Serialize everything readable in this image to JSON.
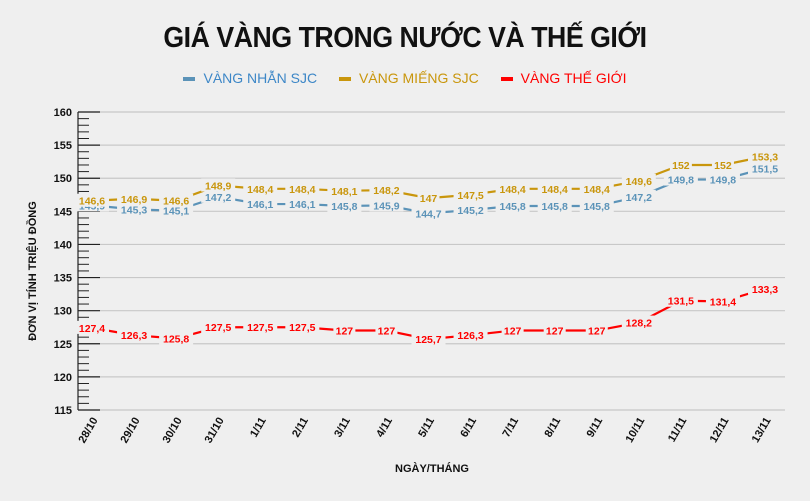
{
  "title": "GIÁ VÀNG TRONG NƯỚC VÀ THẾ GIỚI",
  "legend": [
    {
      "label": "VÀNG NHẪN SJC",
      "color": "#5b93b8"
    },
    {
      "label": "VÀNG MIẾNG SJC",
      "color": "#c9960c"
    },
    {
      "label": "VÀNG THẾ GIỚI",
      "color": "#ff0000"
    }
  ],
  "colors": {
    "background": "#efefef",
    "grid": "#c8c8c8",
    "axis": "#222222"
  },
  "chart_data": {
    "type": "line",
    "title": "GIÁ VÀNG TRONG NƯỚC VÀ THẾ GIỚI",
    "xlabel": "NGÀY/THÁNG",
    "ylabel": "ĐƠN VỊ TÍNH TRIỆU ĐỒNG",
    "ylim": [
      115,
      160
    ],
    "yticks": [
      115,
      120,
      125,
      130,
      135,
      140,
      145,
      150,
      155,
      160
    ],
    "grid": true,
    "legend_position": "top",
    "categories": [
      "28/10",
      "29/10",
      "30/10",
      "31/10",
      "1/11",
      "2/11",
      "3/11",
      "4/11",
      "5/11",
      "6/11",
      "7/11",
      "8/11",
      "9/11",
      "10/11",
      "11/11",
      "12/11",
      "13/11"
    ],
    "series": [
      {
        "name": "VÀNG NHẪN SJC",
        "color": "#5b93b8",
        "values": [
          145.9,
          145.3,
          145.1,
          147.2,
          146.1,
          146.1,
          145.8,
          145.9,
          144.7,
          145.2,
          145.8,
          145.8,
          145.8,
          147.2,
          149.8,
          149.8,
          151.5
        ],
        "labels": [
          "145,9",
          "145,3",
          "145,1",
          "147,2",
          "146,1",
          "146,1",
          "145,8",
          "145,9",
          "144,7",
          "145,2",
          "145,8",
          "145,8",
          "145,8",
          "147,2",
          "149,8",
          "149,8",
          "151,5"
        ]
      },
      {
        "name": "VÀNG MIẾNG SJC",
        "color": "#c9960c",
        "values": [
          146.6,
          146.9,
          146.6,
          148.9,
          148.4,
          148.4,
          148.1,
          148.2,
          147,
          147.5,
          148.4,
          148.4,
          148.4,
          149.6,
          152,
          152,
          153.3
        ],
        "labels": [
          "146,6",
          "146,9",
          "146,6",
          "148,9",
          "148,4",
          "148,4",
          "148,1",
          "148,2",
          "147",
          "147,5",
          "148,4",
          "148,4",
          "148,4",
          "149,6",
          "152",
          "152",
          "153,3"
        ]
      },
      {
        "name": "VÀNG THẾ GIỚI",
        "color": "#ff0000",
        "values": [
          127.4,
          126.3,
          125.8,
          127.5,
          127.5,
          127.5,
          127,
          127,
          125.7,
          126.3,
          127,
          127,
          127,
          128.2,
          131.5,
          131.4,
          133.3
        ],
        "labels": [
          "127,4",
          "126,3",
          "125,8",
          "127,5",
          "127,5",
          "127,5",
          "127",
          "127",
          "125,7",
          "126,3",
          "127",
          "127",
          "127",
          "128,2",
          "131,5",
          "131,4",
          "133,3"
        ]
      }
    ]
  }
}
